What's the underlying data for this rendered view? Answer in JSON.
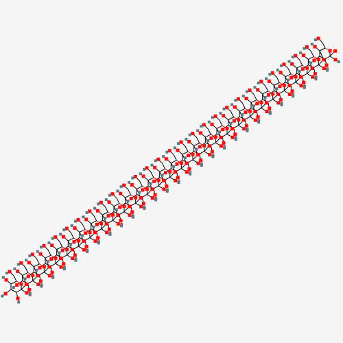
{
  "diagram": {
    "type": "molecular-structure",
    "background": "#f5f5f5",
    "bond_color": "#000000",
    "atom_colors": {
      "oxygen": "#ff0d0d",
      "hydrogen": "#5b7b85"
    },
    "atom_labels": {
      "oxygen": "O",
      "hydrogen": "H"
    },
    "repeating_unit": "glucose-ring",
    "unit_count": 28
  }
}
